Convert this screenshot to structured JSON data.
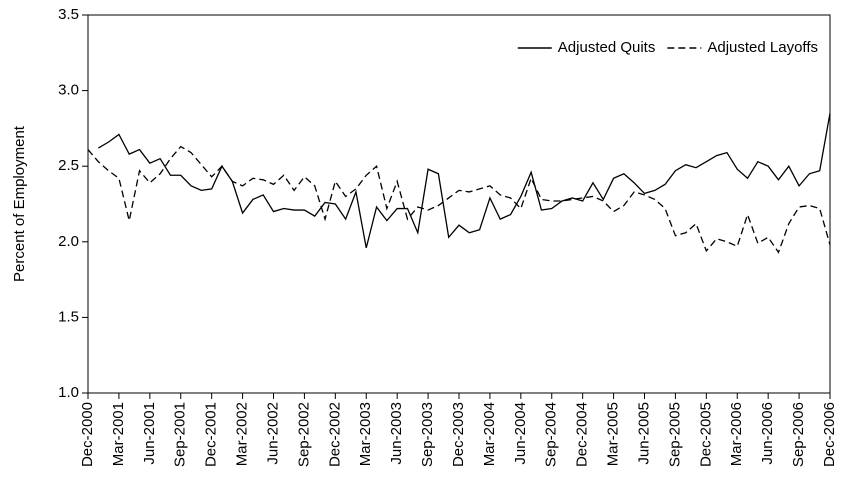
{
  "chart_data": {
    "type": "line",
    "y_label": "Percent of Employment",
    "categories": [
      "Dec-2000",
      null,
      null,
      "Mar-2001",
      null,
      null,
      "Jun-2001",
      null,
      null,
      "Sep-2001",
      null,
      null,
      "Dec-2001",
      null,
      null,
      "Mar-2002",
      null,
      null,
      "Jun-2002",
      null,
      null,
      "Sep-2002",
      null,
      null,
      "Dec-2002",
      null,
      null,
      "Mar-2003",
      null,
      null,
      "Jun-2003",
      null,
      null,
      "Sep-2003",
      null,
      null,
      "Dec-2003",
      null,
      null,
      "Mar-2004",
      null,
      null,
      "Jun-2004",
      null,
      null,
      "Sep-2004",
      null,
      null,
      "Dec-2004",
      null,
      null,
      "Mar-2005",
      null,
      null,
      "Jun-2005",
      null,
      null,
      "Sep-2005",
      null,
      null,
      "Dec-2005",
      null,
      null,
      "Mar-2006",
      null,
      null,
      "Jun-2006",
      null,
      null,
      "Sep-2006",
      null,
      null,
      "Dec-2006"
    ],
    "series": [
      {
        "name": "Adjusted Quits",
        "color": "#000000",
        "dash": "solid",
        "values": [
          null,
          2.62,
          2.66,
          2.71,
          2.58,
          2.61,
          2.52,
          2.55,
          2.44,
          2.44,
          2.37,
          2.34,
          2.35,
          2.5,
          2.4,
          2.19,
          2.28,
          2.31,
          2.2,
          2.22,
          2.21,
          2.21,
          2.17,
          2.26,
          2.25,
          2.15,
          2.33,
          1.96,
          2.23,
          2.14,
          2.22,
          2.22,
          2.06,
          2.48,
          2.45,
          2.03,
          2.11,
          2.06,
          2.08,
          2.29,
          2.15,
          2.18,
          2.3,
          2.46,
          2.21,
          2.22,
          2.27,
          2.29,
          2.27,
          2.39,
          2.28,
          2.42,
          2.45,
          2.39,
          2.32,
          2.34,
          2.38,
          2.47,
          2.51,
          2.49,
          2.53,
          2.57,
          2.59,
          2.48,
          2.42,
          2.53,
          2.5,
          2.41,
          2.5,
          2.37,
          2.45,
          2.47,
          2.85
        ]
      },
      {
        "name": "Adjusted Layoffs",
        "color": "#000000",
        "dash": "dashed",
        "values": [
          2.61,
          2.53,
          2.47,
          2.42,
          2.14,
          2.47,
          2.39,
          2.45,
          2.55,
          2.63,
          2.59,
          2.51,
          2.43,
          2.5,
          2.4,
          2.37,
          2.42,
          2.41,
          2.38,
          2.44,
          2.34,
          2.43,
          2.37,
          2.15,
          2.4,
          2.3,
          2.35,
          2.44,
          2.5,
          2.22,
          2.4,
          2.15,
          2.23,
          2.21,
          2.24,
          2.29,
          2.34,
          2.33,
          2.35,
          2.37,
          2.31,
          2.29,
          2.22,
          2.42,
          2.28,
          2.27,
          2.27,
          2.28,
          2.29,
          2.3,
          2.27,
          2.2,
          2.24,
          2.33,
          2.31,
          2.28,
          2.22,
          2.04,
          2.06,
          2.12,
          1.94,
          2.02,
          2.0,
          1.97,
          2.18,
          1.99,
          2.03,
          1.93,
          2.12,
          2.23,
          2.24,
          2.22,
          1.98
        ]
      }
    ],
    "ylim": [
      1.0,
      3.5
    ],
    "yticks": [
      {
        "value": 1.0,
        "label": "1.0"
      },
      {
        "value": 1.5,
        "label": "1.5"
      },
      {
        "value": 2.0,
        "label": "2.0"
      },
      {
        "value": 2.5,
        "label": "2.5"
      },
      {
        "value": 3.0,
        "label": "3.0"
      },
      {
        "value": 3.5,
        "label": "3.5"
      }
    ],
    "grid": false,
    "legend": "top-right"
  }
}
